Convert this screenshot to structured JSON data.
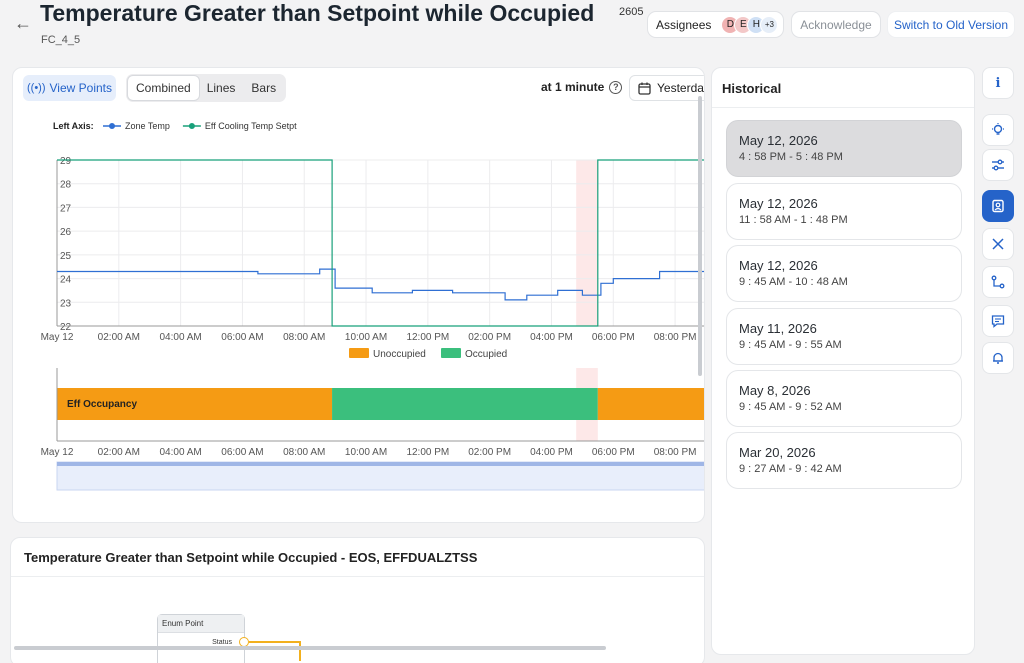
{
  "header": {
    "title": "Temperature Greater than Setpoint while Occupied",
    "count": "2605",
    "subtitle": "FC_4_5",
    "assignees_label": "Assignees",
    "avatars": [
      "D",
      "E",
      "H",
      "+3"
    ],
    "acknowledge_label": "Acknowledge",
    "switch_label": "Switch to Old Version"
  },
  "toolbar": {
    "view_points_label": "View Points",
    "modes": [
      "Combined",
      "Lines",
      "Bars"
    ],
    "active_mode": "Combined",
    "interval_label": "at 1 minute",
    "date_label": "Yesterday"
  },
  "colors": {
    "accent": "#2563c9",
    "zone_temp": "#2f6fd3",
    "setpoint": "#18a07a",
    "unoccupied": "#f59b14",
    "occupied": "#3bbf7d",
    "highlight": "#fde2e2"
  },
  "chart_data": [
    {
      "type": "line",
      "legend_prefix": "Left Axis:",
      "legend": [
        "Zone Temp",
        "Eff Cooling Temp Setpt"
      ],
      "x_ticks": [
        "May 12",
        "02:00 AM",
        "04:00 AM",
        "06:00 AM",
        "08:00 AM",
        "10:00 AM",
        "12:00 PM",
        "02:00 PM",
        "04:00 PM",
        "06:00 PM",
        "08:00 PM"
      ],
      "y_ticks": [
        22,
        23,
        24,
        25,
        26,
        27,
        28,
        29
      ],
      "ylim": [
        22,
        29
      ],
      "xlim_hours": [
        0,
        21
      ],
      "grid": true,
      "highlight_hours": [
        16.8,
        17.5
      ],
      "series": [
        {
          "name": "Zone Temp",
          "points": [
            [
              0,
              24.3
            ],
            [
              6.5,
              24.3
            ],
            [
              6.5,
              24.2
            ],
            [
              8.5,
              24.2
            ],
            [
              8.5,
              24.4
            ],
            [
              9.0,
              24.4
            ],
            [
              9.0,
              23.6
            ],
            [
              10.2,
              23.6
            ],
            [
              10.2,
              23.4
            ],
            [
              11.5,
              23.4
            ],
            [
              11.5,
              23.5
            ],
            [
              12.8,
              23.5
            ],
            [
              12.8,
              23.4
            ],
            [
              14.5,
              23.4
            ],
            [
              14.5,
              23.1
            ],
            [
              15.2,
              23.1
            ],
            [
              15.2,
              23.3
            ],
            [
              16.2,
              23.3
            ],
            [
              16.2,
              23.5
            ],
            [
              17.0,
              23.5
            ],
            [
              17.0,
              23.3
            ],
            [
              17.6,
              23.3
            ],
            [
              17.6,
              23.8
            ],
            [
              18.0,
              23.8
            ],
            [
              18.0,
              24.0
            ],
            [
              19.5,
              24.0
            ],
            [
              19.5,
              24.3
            ],
            [
              21,
              24.3
            ]
          ]
        },
        {
          "name": "Eff Cooling Temp Setpt",
          "points": [
            [
              0,
              29
            ],
            [
              8.9,
              29
            ],
            [
              8.9,
              22
            ],
            [
              17.5,
              22
            ],
            [
              17.5,
              29
            ],
            [
              21,
              29
            ]
          ]
        }
      ]
    },
    {
      "type": "bar",
      "legend": [
        "Unoccupied",
        "Occupied"
      ],
      "row_label": "Eff Occupancy",
      "x_ticks": [
        "May 12",
        "02:00 AM",
        "04:00 AM",
        "06:00 AM",
        "08:00 AM",
        "10:00 AM",
        "12:00 PM",
        "02:00 PM",
        "04:00 PM",
        "06:00 PM",
        "08:00 PM"
      ],
      "segments": [
        {
          "state": "Unoccupied",
          "from_hour": 0,
          "to_hour": 8.9
        },
        {
          "state": "Occupied",
          "from_hour": 8.9,
          "to_hour": 17.5
        },
        {
          "state": "Unoccupied",
          "from_hour": 17.5,
          "to_hour": 21
        }
      ]
    }
  ],
  "detail": {
    "title": "Temperature Greater than Setpoint while Occupied - EOS, EFFDUALZTSS",
    "node_title": "Enum Point",
    "node_port": "Status"
  },
  "historical": {
    "title": "Historical",
    "items": [
      {
        "date": "May 12, 2026",
        "time": "4 : 58 PM - 5 : 48 PM",
        "selected": true
      },
      {
        "date": "May 12, 2026",
        "time": "11 : 58 AM - 1 : 48 PM",
        "selected": false
      },
      {
        "date": "May 12, 2026",
        "time": "9 : 45 AM - 10 : 48 AM",
        "selected": false
      },
      {
        "date": "May 11, 2026",
        "time": "9 : 45 AM - 9 : 55 AM",
        "selected": false
      },
      {
        "date": "May 8, 2026",
        "time": "9 : 45 AM - 9 : 52 AM",
        "selected": false
      },
      {
        "date": "Mar 20, 2026",
        "time": "9 : 27 AM - 9 : 42 AM",
        "selected": false
      }
    ]
  },
  "rail": {
    "icons": [
      "info-icon",
      "lightbulb-icon",
      "sliders-icon",
      "clipboard-user-icon",
      "tools-icon",
      "flow-icon",
      "comment-icon",
      "bell-icon"
    ],
    "active": "clipboard-user-icon"
  }
}
